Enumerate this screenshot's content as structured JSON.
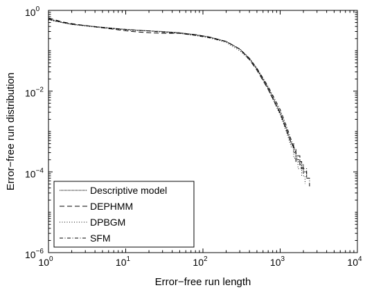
{
  "chart_data": {
    "type": "line",
    "xlabel": "Error−free run length",
    "ylabel": "Error−free run distribution",
    "x_scale": "log",
    "y_scale": "log",
    "xlim": [
      1,
      10000
    ],
    "ylim": [
      1e-06,
      1
    ],
    "grid": false,
    "legend_position": "bottom-left",
    "x_ticks": [
      {
        "base": "10",
        "exp": "0",
        "value": 1
      },
      {
        "base": "10",
        "exp": "1",
        "value": 10
      },
      {
        "base": "10",
        "exp": "2",
        "value": 100
      },
      {
        "base": "10",
        "exp": "3",
        "value": 1000
      },
      {
        "base": "10",
        "exp": "4",
        "value": 10000
      }
    ],
    "y_ticks": [
      {
        "base": "10",
        "exp": "0",
        "value": 1
      },
      {
        "base": "10",
        "exp": "−2",
        "value": 0.01
      },
      {
        "base": "10",
        "exp": "−4",
        "value": 0.0001
      },
      {
        "base": "10",
        "exp": "−6",
        "value": 1e-06
      }
    ],
    "series": [
      {
        "name": "Descriptive model",
        "dash": "solid-thin",
        "x": [
          1,
          1.5,
          2,
          3,
          5,
          8,
          12,
          20,
          30,
          50,
          80,
          120,
          200,
          300,
          400,
          500,
          700,
          1000,
          1200,
          1400,
          1500,
          1500,
          1600,
          1600,
          1800,
          1800,
          2000,
          2000,
          2200,
          2200
        ],
        "y": [
          0.6,
          0.5,
          0.45,
          0.42,
          0.38,
          0.35,
          0.33,
          0.31,
          0.3,
          0.28,
          0.25,
          0.22,
          0.17,
          0.11,
          0.065,
          0.036,
          0.012,
          0.003,
          0.0012,
          0.0005,
          0.0005,
          0.0003,
          0.0003,
          0.0002,
          0.0002,
          0.00015,
          0.00015,
          0.0001,
          0.0001,
          7e-05
        ]
      },
      {
        "name": "DEPHMM",
        "dash": "dashed",
        "x": [
          1,
          1.5,
          2,
          3,
          5,
          8,
          12,
          20,
          30,
          50,
          80,
          120,
          200,
          300,
          400,
          500,
          700,
          1000,
          1200,
          1400,
          1500,
          1600,
          1600,
          1800,
          1800,
          2000,
          2000
        ],
        "y": [
          0.65,
          0.52,
          0.47,
          0.42,
          0.37,
          0.33,
          0.3,
          0.28,
          0.27,
          0.27,
          0.25,
          0.22,
          0.17,
          0.11,
          0.06,
          0.033,
          0.011,
          0.0028,
          0.0011,
          0.0005,
          0.0004,
          0.0004,
          0.00025,
          0.00025,
          0.00013,
          0.00013,
          9e-05
        ]
      },
      {
        "name": "DPBGM",
        "dash": "dotted",
        "x": [
          1,
          1.5,
          2,
          3,
          5,
          8,
          12,
          20,
          30,
          50,
          80,
          120,
          200,
          300,
          400,
          500,
          700,
          1000,
          1200,
          1400,
          1500,
          1500,
          1700,
          1700,
          1900,
          1900,
          2100,
          2100
        ],
        "y": [
          0.58,
          0.5,
          0.45,
          0.41,
          0.37,
          0.34,
          0.32,
          0.31,
          0.29,
          0.27,
          0.24,
          0.21,
          0.16,
          0.1,
          0.06,
          0.034,
          0.011,
          0.0026,
          0.001,
          0.0004,
          0.0004,
          0.00022,
          0.00022,
          0.00012,
          0.00012,
          8e-05,
          8e-05,
          5e-05
        ]
      },
      {
        "name": "SFM",
        "dash": "dash-dot",
        "x": [
          1,
          1.5,
          2,
          3,
          5,
          8,
          12,
          20,
          30,
          50,
          80,
          120,
          200,
          300,
          400,
          500,
          700,
          1000,
          1200,
          1400,
          1600,
          1600,
          1900,
          1900,
          2200,
          2200,
          2400,
          2400
        ],
        "y": [
          0.62,
          0.51,
          0.46,
          0.42,
          0.38,
          0.35,
          0.33,
          0.31,
          0.29,
          0.27,
          0.24,
          0.21,
          0.17,
          0.11,
          0.065,
          0.037,
          0.013,
          0.0035,
          0.0014,
          0.0006,
          0.0003,
          0.00018,
          0.00018,
          0.00012,
          0.00012,
          7e-05,
          7e-05,
          4e-05
        ]
      }
    ]
  }
}
